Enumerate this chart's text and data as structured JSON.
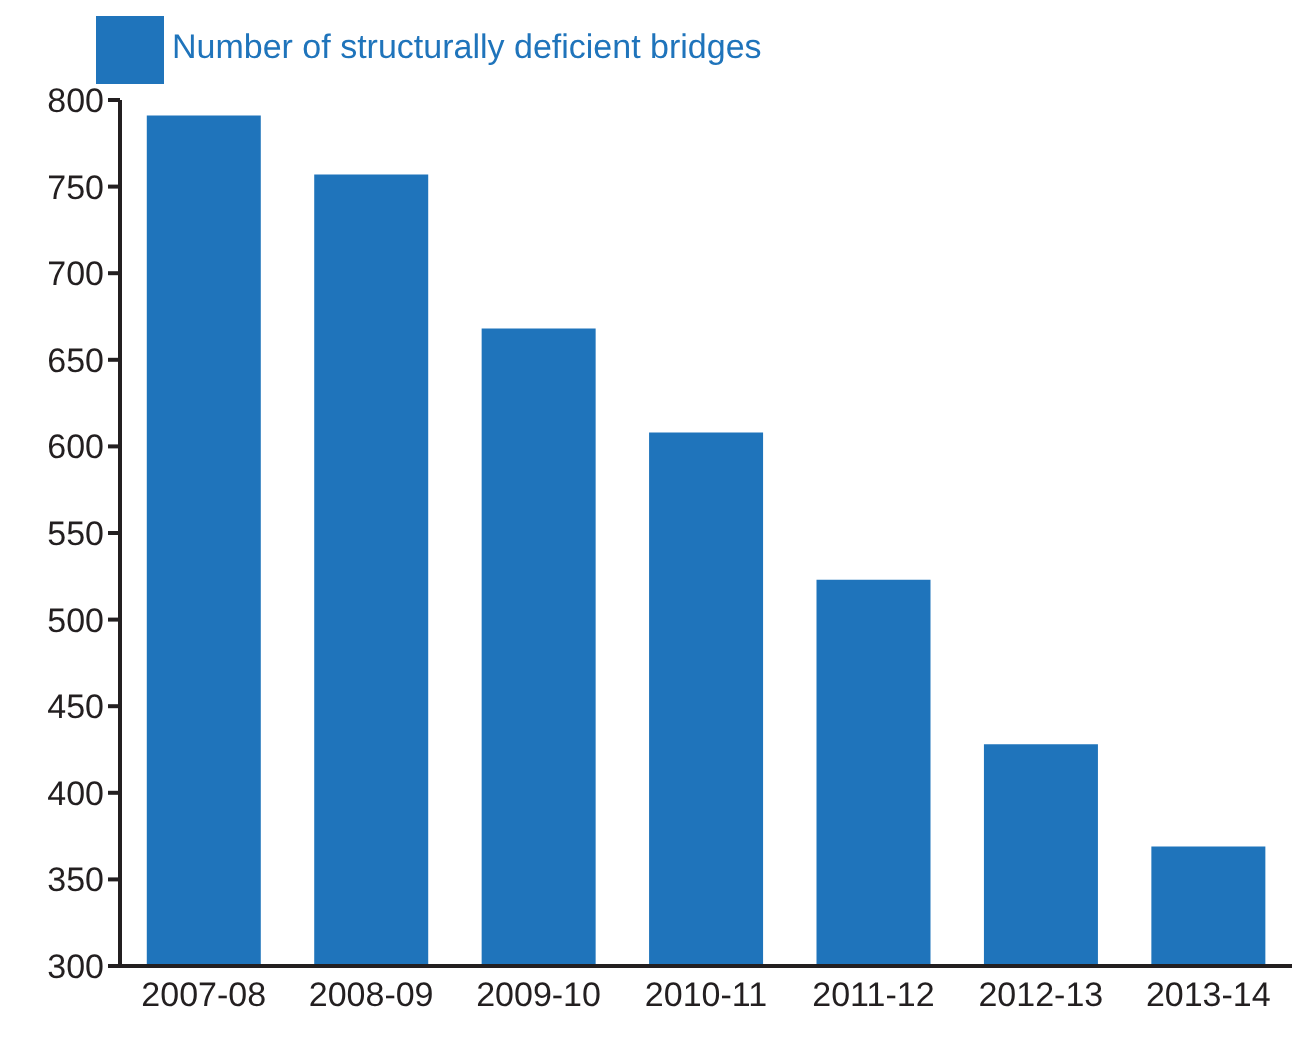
{
  "chart_data": {
    "type": "bar",
    "categories": [
      "2007-08",
      "2008-09",
      "2009-10",
      "2010-11",
      "2011-12",
      "2012-13",
      "2013-14"
    ],
    "series": [
      {
        "name": "Number of structurally deficient bridges",
        "color": "#1f74bb",
        "values": [
          791,
          757,
          668,
          608,
          523,
          428,
          369
        ]
      }
    ],
    "ylim": [
      300,
      800
    ],
    "yticks": [
      300,
      350,
      400,
      450,
      500,
      550,
      600,
      650,
      700,
      750,
      800
    ],
    "grid": false,
    "legend": "top left"
  }
}
